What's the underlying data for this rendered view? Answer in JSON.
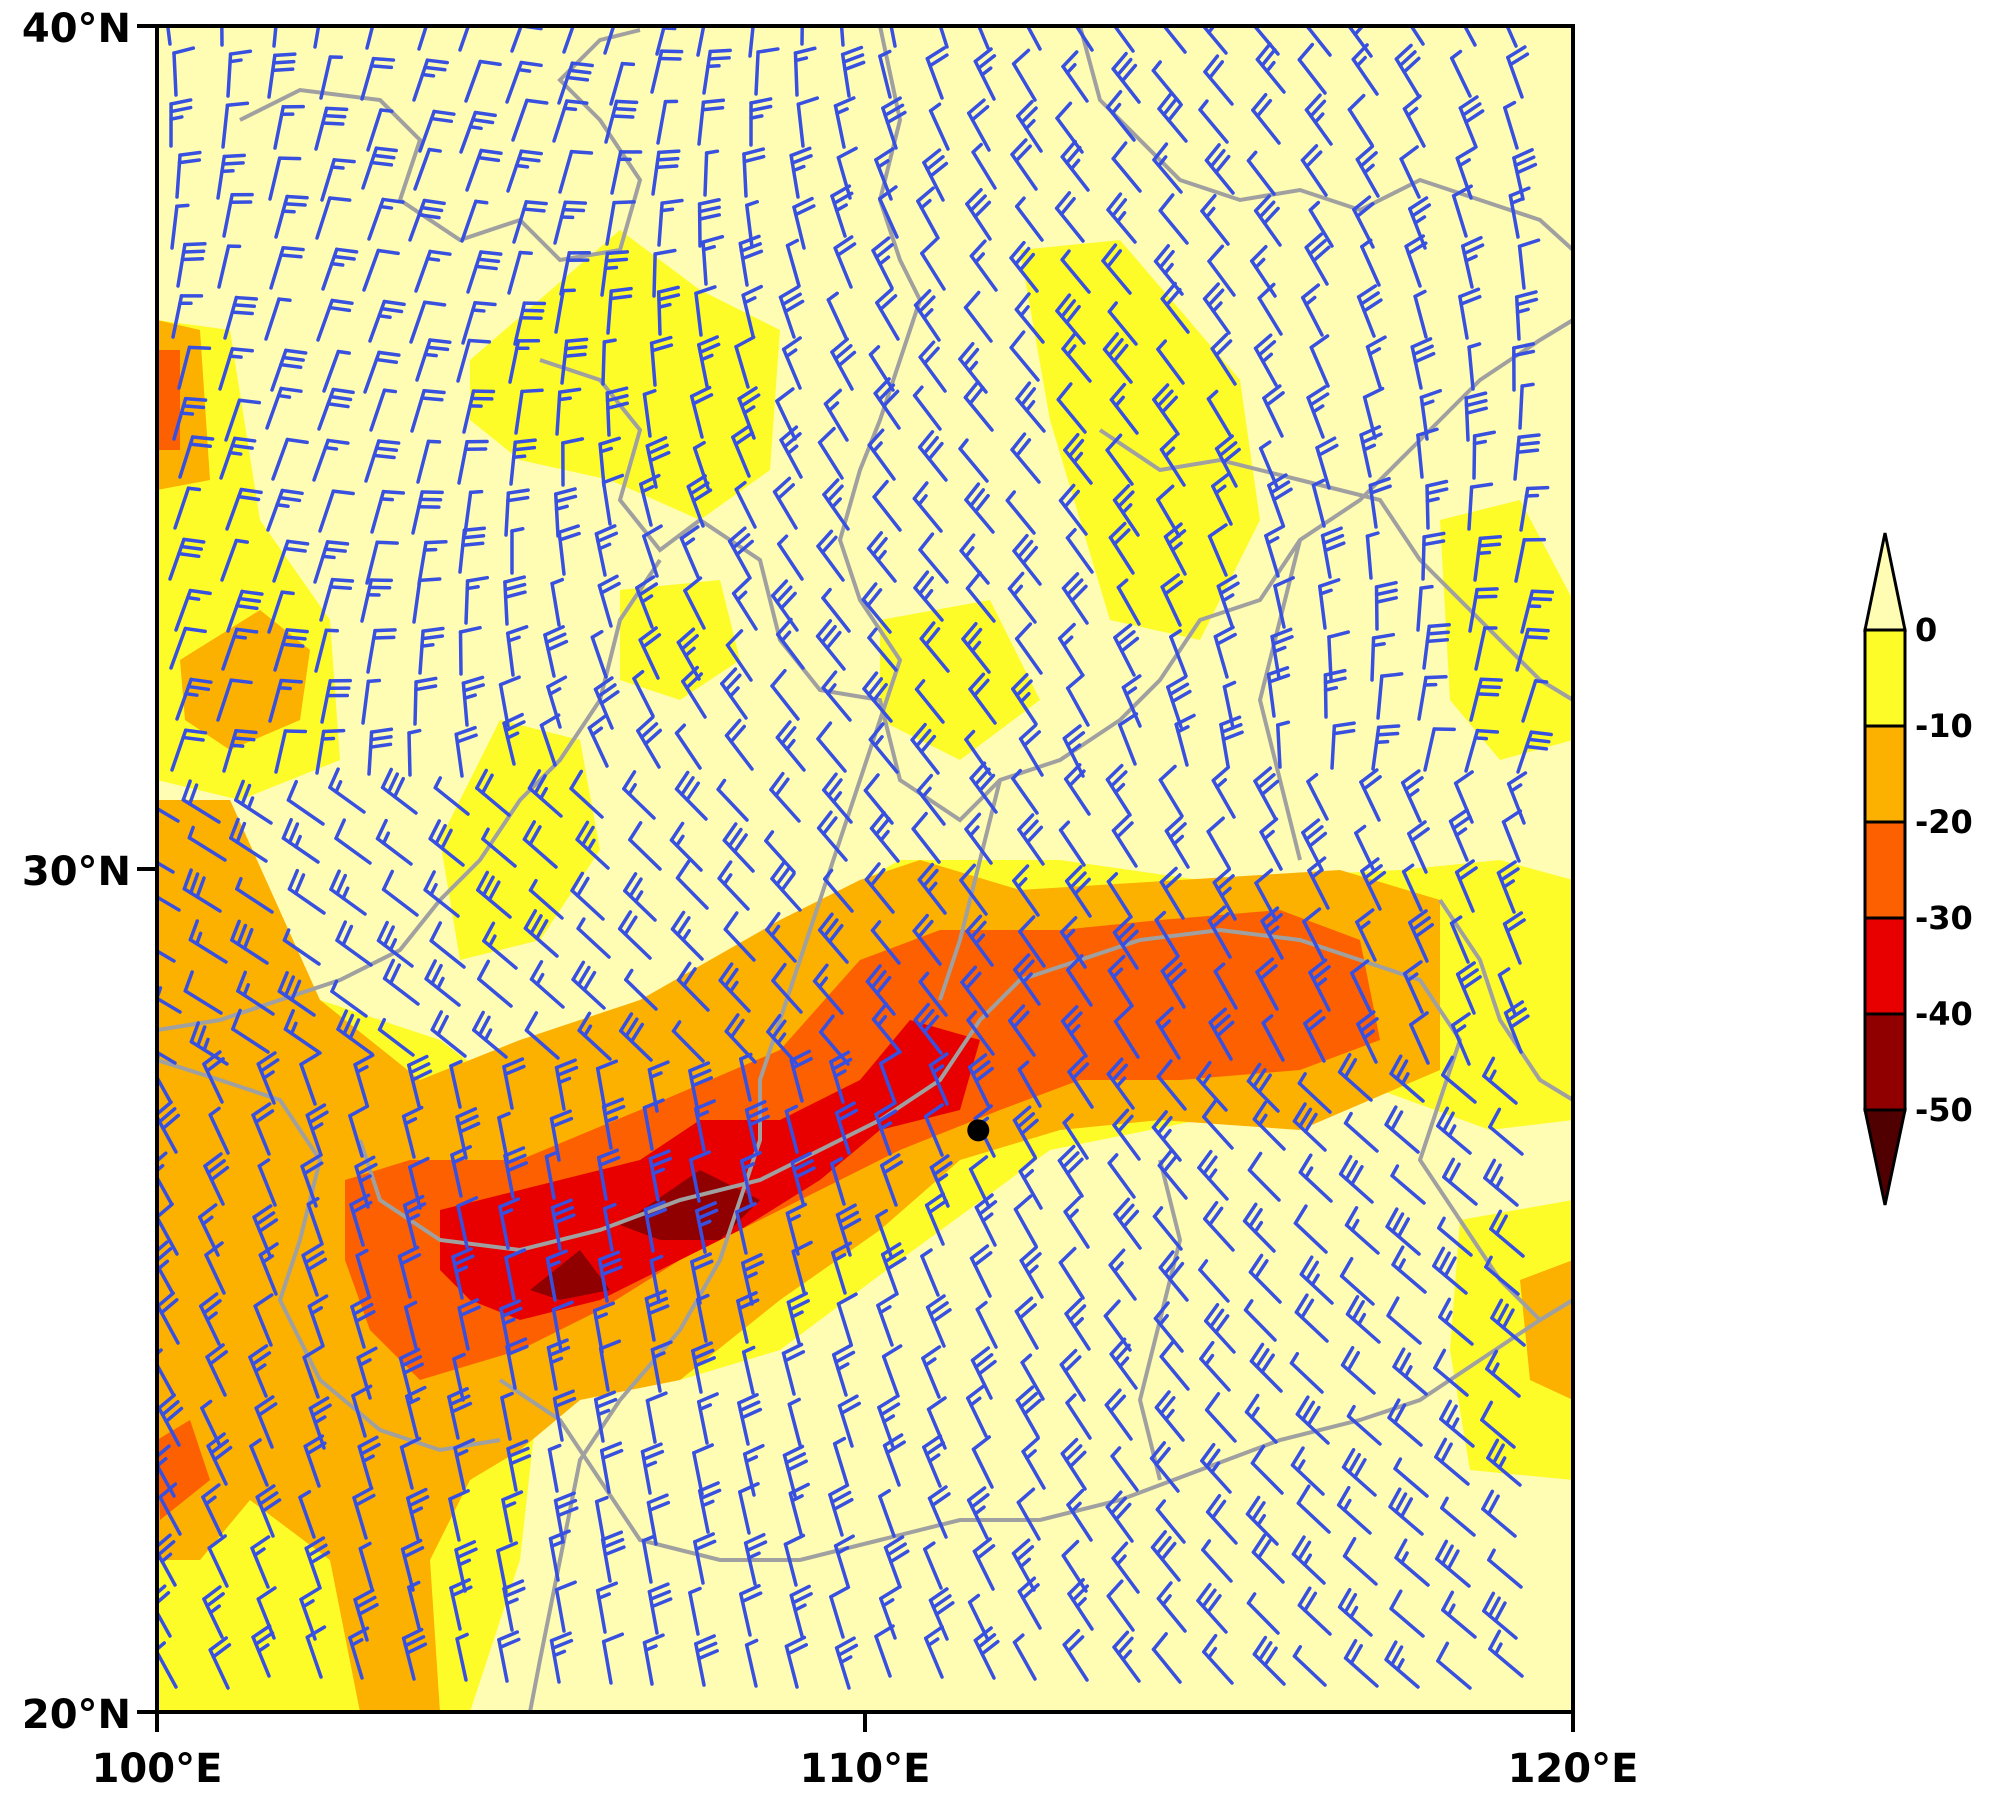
{
  "map": {
    "lon_range": [
      100,
      120
    ],
    "lat_range": [
      20,
      40
    ],
    "x_ticks": [
      {
        "value": 100,
        "label": "100°E"
      },
      {
        "value": 110,
        "label": "110°E"
      },
      {
        "value": 120,
        "label": "120°E"
      }
    ],
    "y_ticks": [
      {
        "value": 40,
        "label": "40°N"
      },
      {
        "value": 30,
        "label": "30°N"
      },
      {
        "value": 20,
        "label": "20°N"
      }
    ],
    "marker": {
      "lon": 111.6,
      "lat": 26.9,
      "color": "#000000"
    },
    "boundary_color": "#a0a0a0",
    "wind_barb_color": "#3850e0"
  },
  "colorbar": {
    "levels": [
      "0",
      "-10",
      "-20",
      "-30",
      "-40",
      "-50"
    ],
    "colors": [
      "#fffcb4",
      "#fefc28",
      "#fcb000",
      "#fc6000",
      "#e80000",
      "#900000",
      "#500000"
    ]
  }
}
